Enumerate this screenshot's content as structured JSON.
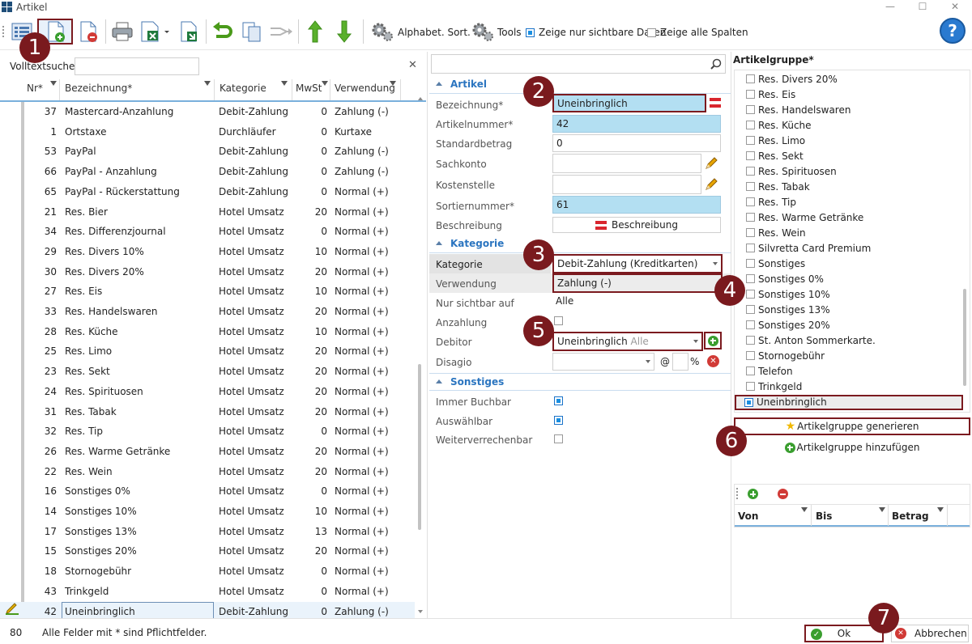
{
  "window": {
    "title": "Artikel",
    "minimize": "—",
    "maximize": "☐",
    "close": "✕"
  },
  "toolbar": {
    "alpha_sort": "Alphabet. Sort.",
    "tools": "Tools",
    "show_visible": "Zeige nur sichtbare Daten",
    "show_visible_checked": true,
    "show_all_cols": "Zeige alle Spalten",
    "show_all_cols_checked": false,
    "help": "?"
  },
  "left": {
    "search_label": "Volltextsuche",
    "search_value": "",
    "clear": "✕",
    "columns": {
      "nr": "Nr*",
      "bez": "Bezeichnung*",
      "kat": "Kategorie",
      "mwst": "MwSt",
      "ver": "Verwendung"
    },
    "rows": [
      {
        "nr": "37",
        "bez": "Mastercard-Anzahlung",
        "kat": "Debit-Zahlung (K",
        "mwst": "0",
        "ver": "Zahlung (-)"
      },
      {
        "nr": "1",
        "bez": "Ortstaxe",
        "kat": "Durchläufer",
        "mwst": "0",
        "ver": "Kurtaxe"
      },
      {
        "nr": "53",
        "bez": "PayPal",
        "kat": "Debit-Zahlung (K",
        "mwst": "0",
        "ver": "Zahlung (-)"
      },
      {
        "nr": "66",
        "bez": "PayPal - Anzahlung",
        "kat": "Debit-Zahlung (K",
        "mwst": "0",
        "ver": "Zahlung (-)"
      },
      {
        "nr": "65",
        "bez": "PayPal - Rückerstattung",
        "kat": "Debit-Zahlung (K",
        "mwst": "0",
        "ver": "Normal (+)"
      },
      {
        "nr": "21",
        "bez": "Res. Bier",
        "kat": "Hotel Umsatz",
        "mwst": "20",
        "ver": "Normal (+)"
      },
      {
        "nr": "34",
        "bez": "Res. Differenzjournal",
        "kat": "Hotel Umsatz",
        "mwst": "0",
        "ver": "Normal (+)"
      },
      {
        "nr": "29",
        "bez": "Res. Divers 10%",
        "kat": "Hotel Umsatz",
        "mwst": "10",
        "ver": "Normal (+)"
      },
      {
        "nr": "30",
        "bez": "Res. Divers 20%",
        "kat": "Hotel Umsatz",
        "mwst": "20",
        "ver": "Normal (+)"
      },
      {
        "nr": "27",
        "bez": "Res. Eis",
        "kat": "Hotel Umsatz",
        "mwst": "10",
        "ver": "Normal (+)"
      },
      {
        "nr": "33",
        "bez": "Res. Handelswaren",
        "kat": "Hotel Umsatz",
        "mwst": "20",
        "ver": "Normal (+)"
      },
      {
        "nr": "28",
        "bez": "Res. Küche",
        "kat": "Hotel Umsatz",
        "mwst": "10",
        "ver": "Normal (+)"
      },
      {
        "nr": "25",
        "bez": "Res. Limo",
        "kat": "Hotel Umsatz",
        "mwst": "20",
        "ver": "Normal (+)"
      },
      {
        "nr": "23",
        "bez": "Res. Sekt",
        "kat": "Hotel Umsatz",
        "mwst": "20",
        "ver": "Normal (+)"
      },
      {
        "nr": "24",
        "bez": "Res. Spirituosen",
        "kat": "Hotel Umsatz",
        "mwst": "20",
        "ver": "Normal (+)"
      },
      {
        "nr": "31",
        "bez": "Res. Tabak",
        "kat": "Hotel Umsatz",
        "mwst": "20",
        "ver": "Normal (+)"
      },
      {
        "nr": "32",
        "bez": "Res. Tip",
        "kat": "Hotel Umsatz",
        "mwst": "0",
        "ver": "Normal (+)"
      },
      {
        "nr": "26",
        "bez": "Res. Warme Getränke",
        "kat": "Hotel Umsatz",
        "mwst": "20",
        "ver": "Normal (+)"
      },
      {
        "nr": "22",
        "bez": "Res. Wein",
        "kat": "Hotel Umsatz",
        "mwst": "20",
        "ver": "Normal (+)"
      },
      {
        "nr": "16",
        "bez": "Sonstiges 0%",
        "kat": "Hotel Umsatz",
        "mwst": "0",
        "ver": "Normal (+)"
      },
      {
        "nr": "14",
        "bez": "Sonstiges 10%",
        "kat": "Hotel Umsatz",
        "mwst": "10",
        "ver": "Normal (+)"
      },
      {
        "nr": "17",
        "bez": "Sonstiges 13%",
        "kat": "Hotel Umsatz",
        "mwst": "13",
        "ver": "Normal (+)"
      },
      {
        "nr": "15",
        "bez": "Sonstiges 20%",
        "kat": "Hotel Umsatz",
        "mwst": "20",
        "ver": "Normal (+)"
      },
      {
        "nr": "18",
        "bez": "Stornogebühr",
        "kat": "Hotel Umsatz",
        "mwst": "0",
        "ver": "Normal (+)"
      },
      {
        "nr": "43",
        "bez": "Trinkgeld",
        "kat": "Hotel Umsatz",
        "mwst": "0",
        "ver": "Normal (+)"
      },
      {
        "nr": "42",
        "bez": "Uneinbringlich",
        "kat": "Debit-Zahlung (K",
        "mwst": "0",
        "ver": "Zahlung (-)"
      }
    ],
    "selected_row": 25
  },
  "form": {
    "search_value": "",
    "sec_artikel": "Artikel",
    "sec_kategorie": "Kategorie",
    "sec_sonstiges": "Sonstiges",
    "lbl_bezeichnung": "Bezeichnung*",
    "val_bezeichnung": "Uneinbringlich",
    "lbl_artikelnummer": "Artikelnummer*",
    "val_artikelnummer": "42",
    "lbl_standardbetrag": "Standardbetrag",
    "val_standardbetrag": "0",
    "lbl_sachkonto": "Sachkonto",
    "val_sachkonto": "",
    "lbl_kostenstelle": "Kostenstelle",
    "val_kostenstelle": "",
    "lbl_sortiernummer": "Sortiernummer*",
    "val_sortiernummer": "61",
    "lbl_beschreibung": "Beschreibung",
    "btn_beschreibung": "Beschreibung",
    "lbl_kategorie": "Kategorie",
    "val_kategorie": "Debit-Zahlung (Kreditkarten)",
    "lbl_verwendung": "Verwendung",
    "val_verwendung": "Zahlung (-)",
    "lbl_nur_sichtbar": "Nur sichtbar auf",
    "val_nur_sichtbar": "Alle",
    "lbl_anzahlung": "Anzahlung",
    "anzahlung_checked": false,
    "lbl_debitor": "Debitor",
    "val_debitor": "Uneinbringlich",
    "val_debitor_hint": "Alle",
    "lbl_disagio": "Disagio",
    "val_disagio": "",
    "disagio_at": "@",
    "disagio_pct": "%",
    "lbl_immer_buchbar": "Immer Buchbar",
    "immer_buchbar_checked": true,
    "lbl_auswaehlbar": "Auswählbar",
    "auswaehlbar_checked": true,
    "lbl_weiterverrechenbar": "Weiterverrechenbar",
    "weiterverrechenbar_checked": false
  },
  "artikelgruppe": {
    "title": "Artikelgruppe*",
    "items": [
      {
        "label": "Res. Divers 20%",
        "checked": false
      },
      {
        "label": "Res. Eis",
        "checked": false
      },
      {
        "label": "Res. Handelswaren",
        "checked": false
      },
      {
        "label": "Res. Küche",
        "checked": false
      },
      {
        "label": "Res. Limo",
        "checked": false
      },
      {
        "label": "Res. Sekt",
        "checked": false
      },
      {
        "label": "Res. Spirituosen",
        "checked": false
      },
      {
        "label": "Res. Tabak",
        "checked": false
      },
      {
        "label": "Res. Tip",
        "checked": false
      },
      {
        "label": "Res. Warme Getränke",
        "checked": false
      },
      {
        "label": "Res. Wein",
        "checked": false
      },
      {
        "label": "Silvretta Card Premium",
        "checked": false
      },
      {
        "label": "Sonstiges",
        "checked": false
      },
      {
        "label": "Sonstiges 0%",
        "checked": false
      },
      {
        "label": "Sonstiges 10%",
        "checked": false
      },
      {
        "label": "Sonstiges 13%",
        "checked": false
      },
      {
        "label": "Sonstiges 20%",
        "checked": false
      },
      {
        "label": "St. Anton Sommerkarte.",
        "checked": false
      },
      {
        "label": "Stornogebühr",
        "checked": false
      },
      {
        "label": "Telefon",
        "checked": false
      },
      {
        "label": "Trinkgeld",
        "checked": false
      },
      {
        "label": "Uneinbringlich",
        "checked": true
      }
    ],
    "btn_generate": "Artikelgruppe generieren",
    "btn_add": "Artikelgruppe hinzufügen",
    "col_von": "Von",
    "col_bis": "Bis",
    "col_betrag": "Betrag"
  },
  "status": {
    "count": "80",
    "hint": "Alle Felder mit * sind Pflichtfelder.",
    "ok": "Ok",
    "cancel": "Abbrechen"
  },
  "badges": [
    "1",
    "2",
    "3",
    "4",
    "5",
    "6",
    "7"
  ],
  "colors": {
    "accent": "#2b75c0",
    "highlight": "#7b1a1f",
    "required_field": "#b3dff2",
    "badge": "#7a1a1e"
  }
}
